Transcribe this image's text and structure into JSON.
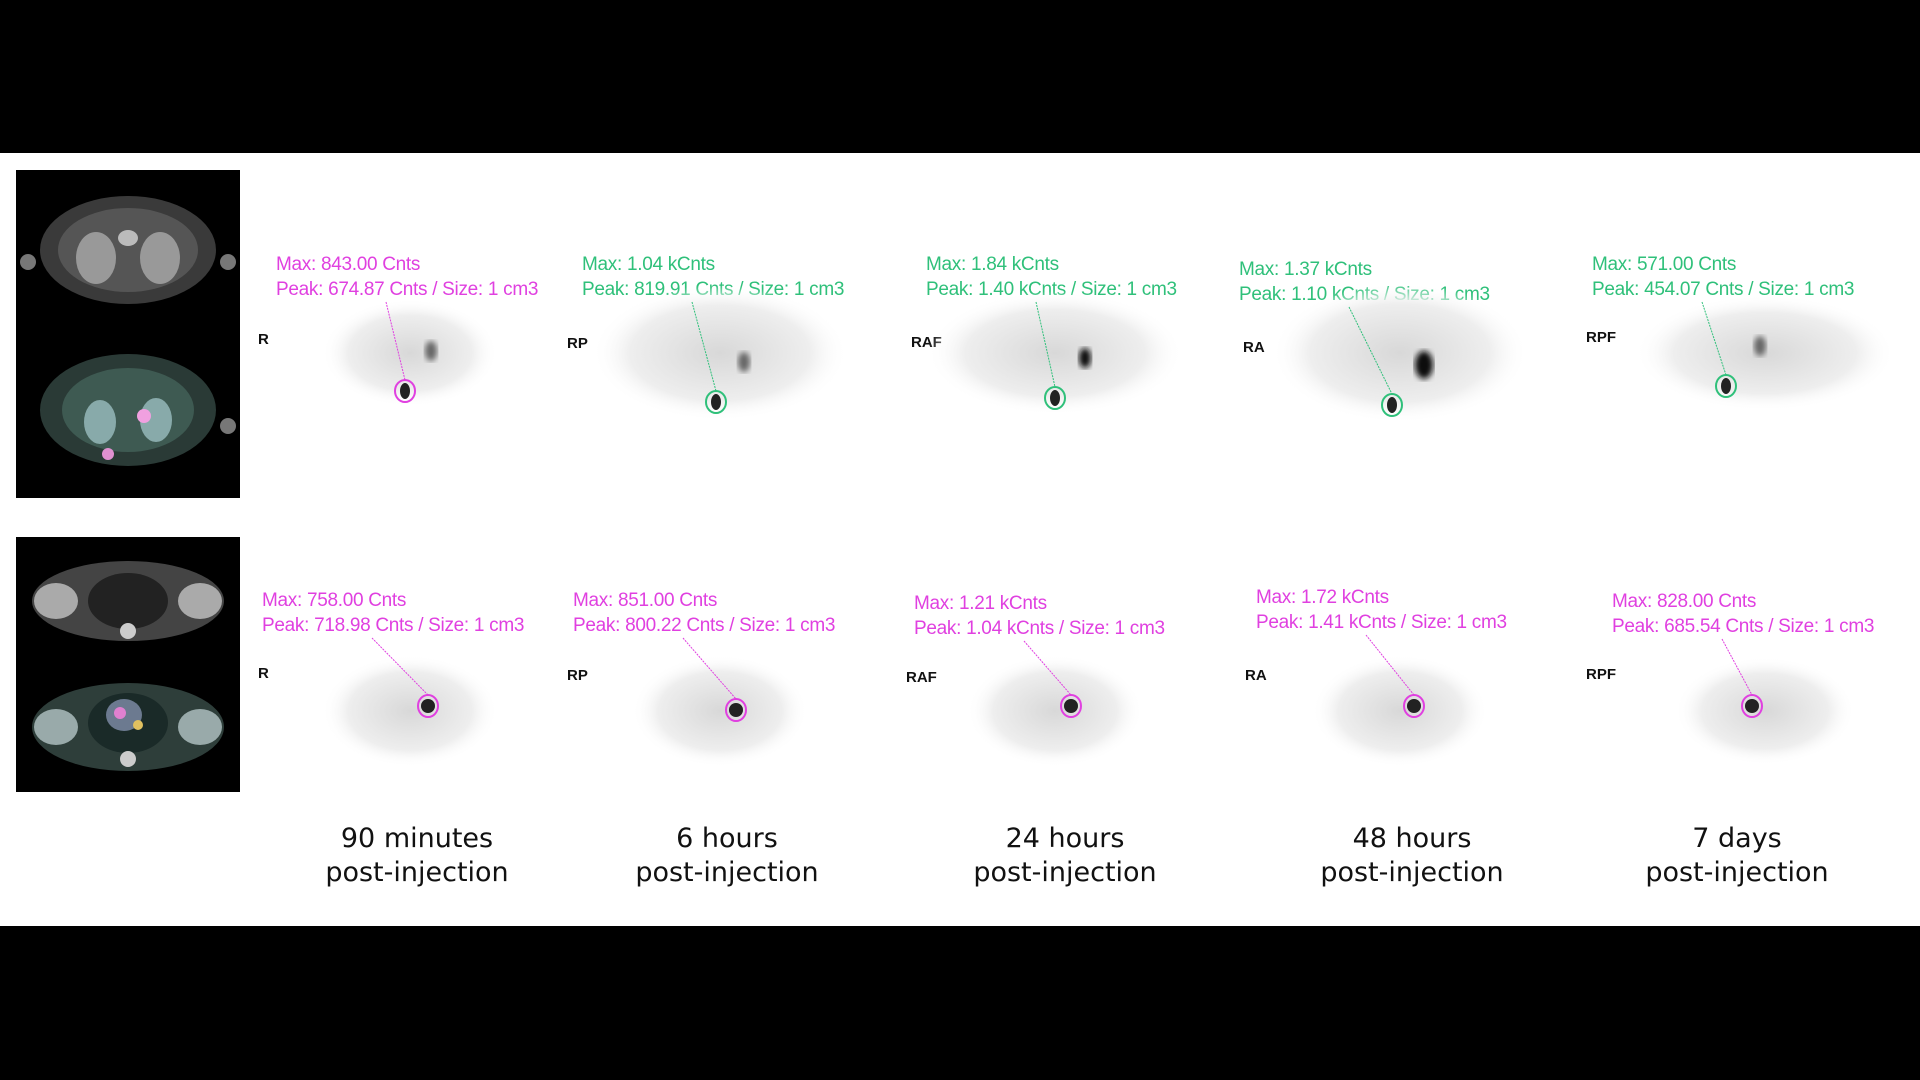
{
  "colors": {
    "magenta": "#e040e0",
    "green": "#2fc07a",
    "background": "#000000",
    "panel": "#ffffff"
  },
  "rows": [
    {
      "name": "top",
      "panels": [
        {
          "orient": "R",
          "color": "magenta",
          "max": "Max: 843.00 Cnts",
          "peak": "Peak: 674.87 Cnts / Size: 1 cm3"
        },
        {
          "orient": "RP",
          "color": "green",
          "max": "Max: 1.04 kCnts",
          "peak": "Peak: 819.91 Cnts / Size: 1 cm3"
        },
        {
          "orient": "RAF",
          "color": "green",
          "max": "Max: 1.84 kCnts",
          "peak": "Peak: 1.40 kCnts / Size: 1 cm3"
        },
        {
          "orient": "RA",
          "color": "green",
          "max": "Max: 1.37 kCnts",
          "peak": "Peak: 1.10 kCnts / Size: 1 cm3"
        },
        {
          "orient": "RPF",
          "color": "green",
          "max": "Max: 571.00 Cnts",
          "peak": "Peak: 454.07 Cnts / Size: 1 cm3"
        }
      ]
    },
    {
      "name": "bottom",
      "panels": [
        {
          "orient": "R",
          "color": "magenta",
          "max": "Max: 758.00 Cnts",
          "peak": "Peak: 718.98 Cnts / Size: 1 cm3"
        },
        {
          "orient": "RP",
          "color": "magenta",
          "max": "Max: 851.00 Cnts",
          "peak": "Peak: 800.22 Cnts / Size: 1 cm3"
        },
        {
          "orient": "RAF",
          "color": "magenta",
          "max": "Max: 1.21 kCnts",
          "peak": "Peak: 1.04 kCnts / Size: 1 cm3"
        },
        {
          "orient": "RA",
          "color": "magenta",
          "max": "Max: 1.72 kCnts",
          "peak": "Peak: 1.41 kCnts / Size: 1 cm3"
        },
        {
          "orient": "RPF",
          "color": "magenta",
          "max": "Max: 828.00 Cnts",
          "peak": "Peak: 685.54 Cnts / Size: 1 cm3"
        }
      ]
    }
  ],
  "timepoints": [
    {
      "line1": "90 minutes",
      "line2": "post-injection"
    },
    {
      "line1": "6 hours",
      "line2": "post-injection"
    },
    {
      "line1": "24 hours",
      "line2": "post-injection"
    },
    {
      "line1": "48 hours",
      "line2": "post-injection"
    },
    {
      "line1": "7 days",
      "line2": "post-injection"
    }
  ]
}
